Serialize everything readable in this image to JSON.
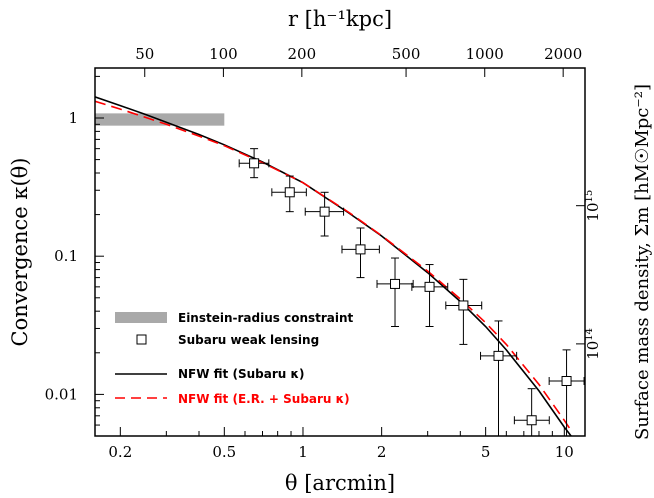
{
  "chart_data": {
    "type": "scatter",
    "x_scale": "log",
    "y_scale": "log",
    "xlabel": "θ [arcmin]",
    "ylabel": "Convergence κ(θ)",
    "top_xlabel": "r [h⁻¹kpc]",
    "right_ylabel": "Surface mass density, Σm [hM☉Mpc⁻²]",
    "xlim": [
      0.16,
      12.0
    ],
    "ylim": [
      0.005,
      2.3
    ],
    "x_ticks": [
      {
        "value": 0.2,
        "label": "0.2"
      },
      {
        "value": 0.5,
        "label": "0.5"
      },
      {
        "value": 1,
        "label": "1"
      },
      {
        "value": 2,
        "label": "2"
      },
      {
        "value": 5,
        "label": "5"
      },
      {
        "value": 10,
        "label": "10"
      }
    ],
    "y_ticks": [
      {
        "value": 1,
        "label": "1"
      },
      {
        "value": 0.1,
        "label": "0.1"
      },
      {
        "value": 0.01,
        "label": "0.01"
      }
    ],
    "top_ticks": [
      {
        "label": "50",
        "theta": 0.248
      },
      {
        "label": "100",
        "theta": 0.496
      },
      {
        "label": "200",
        "theta": 0.99
      },
      {
        "label": "500",
        "theta": 2.48
      },
      {
        "label": "1000",
        "theta": 4.96
      },
      {
        "label": "2000",
        "theta": 9.9
      }
    ],
    "right_ticks": [
      {
        "base": "10",
        "exp": "15",
        "kappa": 0.232
      },
      {
        "base": "10",
        "exp": "14",
        "kappa": 0.0232
      }
    ],
    "einstein_band": {
      "x": [
        0.16,
        0.5
      ],
      "y": [
        0.88,
        1.08
      ]
    },
    "weak_lensing": [
      {
        "x": 0.65,
        "y": 0.47,
        "xerr": [
          0.57,
          0.74
        ],
        "yerr": [
          0.37,
          0.6
        ]
      },
      {
        "x": 0.89,
        "y": 0.29,
        "xerr": [
          0.76,
          1.03
        ],
        "yerr": [
          0.21,
          0.38
        ]
      },
      {
        "x": 1.21,
        "y": 0.21,
        "xerr": [
          1.02,
          1.43
        ],
        "yerr": [
          0.14,
          0.29
        ]
      },
      {
        "x": 1.66,
        "y": 0.112,
        "xerr": [
          1.41,
          1.96
        ],
        "yerr": [
          0.07,
          0.16
        ]
      },
      {
        "x": 2.25,
        "y": 0.063,
        "xerr": [
          1.92,
          2.64
        ],
        "yerr": [
          0.031,
          0.097
        ]
      },
      {
        "x": 3.05,
        "y": 0.06,
        "xerr": [
          2.61,
          3.58
        ],
        "yerr": [
          0.031,
          0.087
        ]
      },
      {
        "x": 4.11,
        "y": 0.044,
        "xerr": [
          3.52,
          4.83
        ],
        "yerr": [
          0.023,
          0.068
        ]
      },
      {
        "x": 5.6,
        "y": 0.019,
        "xerr": [
          4.78,
          6.57
        ],
        "yerr": [
          0.005,
          0.034
        ]
      },
      {
        "x": 7.5,
        "y": 0.0065,
        "xerr": [
          6.44,
          8.76
        ],
        "yerr": [
          0.005,
          0.011
        ]
      },
      {
        "x": 10.2,
        "y": 0.0125,
        "xerr": [
          8.75,
          11.9
        ],
        "yerr": [
          0.005,
          0.021
        ]
      }
    ],
    "series": [
      {
        "name": "NFW fit (Subaru κ)",
        "color": "#000000",
        "style": "solid",
        "x": [
          0.16,
          0.2,
          0.25,
          0.3,
          0.4,
          0.5,
          0.7,
          1.0,
          1.5,
          2.0,
          3.0,
          4.0,
          5.0,
          6.0,
          8.0,
          10.0,
          10.8
        ],
        "y": [
          1.42,
          1.23,
          1.06,
          0.93,
          0.76,
          0.64,
          0.48,
          0.34,
          0.205,
          0.14,
          0.076,
          0.047,
          0.031,
          0.021,
          0.0106,
          0.0058,
          0.0048
        ]
      },
      {
        "name": "NFW fit (E.R. + Subaru κ)",
        "color": "#ff0000",
        "style": "dashed",
        "x": [
          0.16,
          0.2,
          0.25,
          0.3,
          0.4,
          0.5,
          0.7,
          1.0,
          1.5,
          2.0,
          3.0,
          4.0,
          5.0,
          6.0,
          8.0,
          10.0,
          10.6
        ],
        "y": [
          1.32,
          1.16,
          1.01,
          0.9,
          0.74,
          0.63,
          0.475,
          0.34,
          0.207,
          0.141,
          0.078,
          0.049,
          0.033,
          0.023,
          0.0118,
          0.0065,
          0.0055
        ]
      }
    ],
    "legend": {
      "position": "bottom-left",
      "entries": [
        {
          "marker": "band",
          "label": "Einstein-radius constraint",
          "color": "#000000"
        },
        {
          "marker": "square",
          "label": "Subaru weak lensing",
          "color": "#000000"
        },
        {
          "marker": "solid",
          "label": "NFW fit (Subaru κ)",
          "color": "#000000"
        },
        {
          "marker": "dashed",
          "label": "NFW fit (E.R. + Subaru κ)",
          "color": "#ff0000"
        }
      ]
    },
    "colors": {
      "band": "#a9a9a9",
      "red": "#ff0000",
      "black": "#000000"
    }
  }
}
